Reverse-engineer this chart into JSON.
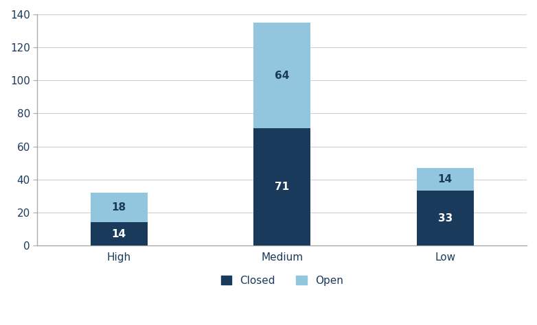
{
  "categories": [
    "High",
    "Medium",
    "Low"
  ],
  "closed_values": [
    14,
    71,
    33
  ],
  "open_values": [
    18,
    64,
    14
  ],
  "closed_color": "#1a3a5c",
  "open_color": "#92c5de",
  "background_color": "#ffffff",
  "grid_color": "#d0d0d0",
  "spine_color": "#aaaaaa",
  "ylim": [
    0,
    140
  ],
  "yticks": [
    0,
    20,
    40,
    60,
    80,
    100,
    120,
    140
  ],
  "legend_labels": [
    "Closed",
    "Open"
  ],
  "label_fontsize": 11,
  "tick_fontsize": 11,
  "tick_label_color": "#1a3a5c",
  "legend_fontsize": 11,
  "bar_width": 0.35
}
